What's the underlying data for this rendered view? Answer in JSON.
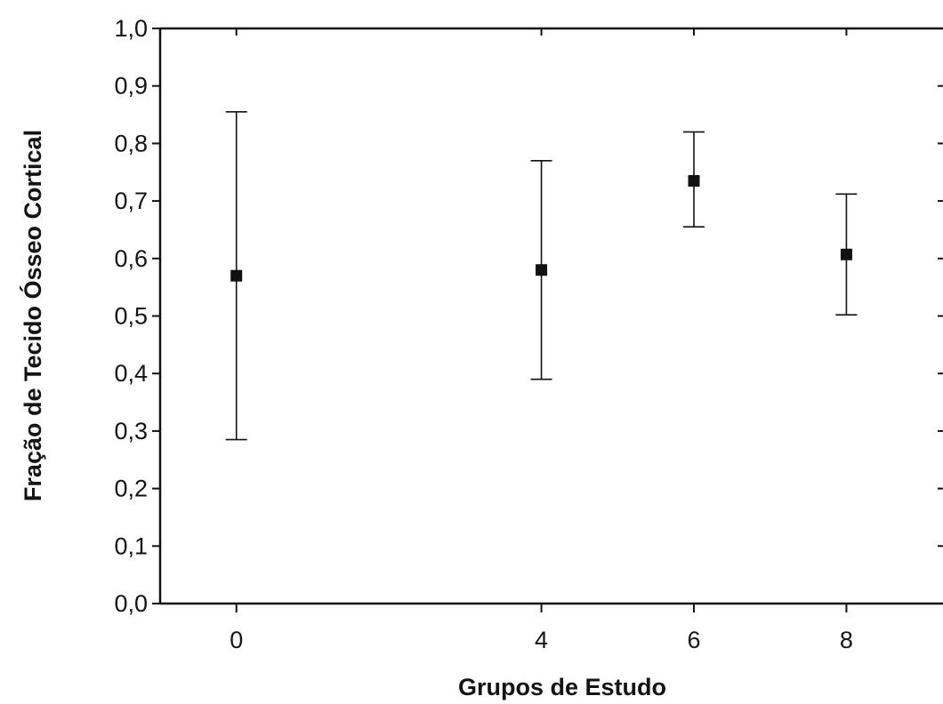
{
  "chart_data": {
    "type": "scatter",
    "title": "",
    "xlabel": "Grupos de Estudo",
    "ylabel": "Fração de Tecido Ósseo Cortical",
    "xlim": [
      -1,
      9.5
    ],
    "ylim": [
      0.0,
      1.0
    ],
    "x_ticks": [
      0,
      4,
      6,
      8
    ],
    "x_tick_labels": [
      "0",
      "4",
      "6",
      "8"
    ],
    "y_ticks": [
      0.0,
      0.1,
      0.2,
      0.3,
      0.4,
      0.5,
      0.6,
      0.7,
      0.8,
      0.9,
      1.0
    ],
    "y_tick_labels": [
      "0,0",
      "0,1",
      "0,2",
      "0,3",
      "0,4",
      "0,5",
      "0,6",
      "0,7",
      "0,8",
      "0,9",
      "1,0"
    ],
    "grid": false,
    "legend": "none",
    "marker": "square",
    "color": "#111111",
    "points": [
      {
        "x": 0,
        "y": 0.57,
        "y_lower": 0.285,
        "y_upper": 0.855
      },
      {
        "x": 4,
        "y": 0.58,
        "y_lower": 0.39,
        "y_upper": 0.77
      },
      {
        "x": 6,
        "y": 0.735,
        "y_lower": 0.655,
        "y_upper": 0.82
      },
      {
        "x": 8,
        "y": 0.607,
        "y_lower": 0.502,
        "y_upper": 0.712
      }
    ]
  }
}
